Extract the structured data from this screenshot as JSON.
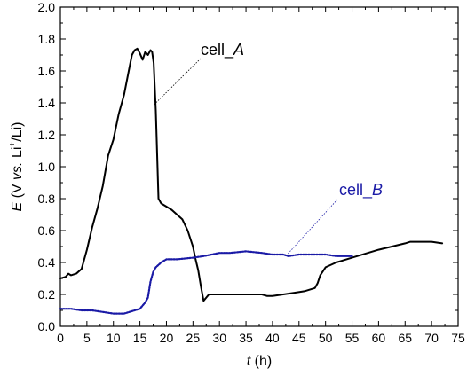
{
  "chart_data": {
    "type": "line",
    "x_axis": {
      "label_main": "t",
      "label_unit": " (h)",
      "range": [
        0,
        75
      ],
      "ticks": [
        0,
        5,
        10,
        15,
        20,
        25,
        30,
        35,
        40,
        45,
        50,
        55,
        60,
        65,
        70,
        75
      ],
      "tick_labels": [
        "0",
        "5",
        "10",
        "15",
        "20",
        "25",
        "30",
        "35",
        "40",
        "45",
        "50",
        "55",
        "60",
        "65",
        "70",
        "75"
      ]
    },
    "y_axis": {
      "label_main": "E",
      "label_v": " (V ",
      "label_vs": "vs.",
      "label_li": " Li",
      "label_sup": "+",
      "label_end": "/Li)",
      "range": [
        0,
        2.0
      ],
      "ticks": [
        0,
        0.2,
        0.4,
        0.6,
        0.8,
        1.0,
        1.2,
        1.4,
        1.6,
        1.8,
        2.0
      ],
      "tick_labels": [
        "0.0",
        "0.2",
        "0.4",
        "0.6",
        "0.8",
        "1.0",
        "1.2",
        "1.4",
        "1.6",
        "1.8",
        "2.0"
      ]
    },
    "grid": false,
    "series": [
      {
        "name": "cell_A",
        "color": "#000000",
        "style": "solid",
        "x": [
          0,
          1,
          1.5,
          2,
          3,
          4,
          5,
          6,
          7,
          8,
          9,
          10,
          11,
          12,
          13,
          13.5,
          14,
          14.5,
          15,
          15.5,
          16,
          16.5,
          17,
          17.3,
          17.6,
          18,
          18.5,
          19,
          20,
          21,
          22,
          23,
          24,
          25,
          25.5,
          26,
          26.5,
          27,
          27.5,
          28,
          30,
          35,
          38,
          39,
          40,
          42,
          44,
          46,
          48,
          48.5,
          49,
          50,
          52,
          55,
          60,
          65,
          66,
          68,
          70,
          72
        ],
        "y": [
          0.3,
          0.31,
          0.33,
          0.32,
          0.33,
          0.36,
          0.48,
          0.62,
          0.74,
          0.88,
          1.07,
          1.17,
          1.33,
          1.45,
          1.62,
          1.7,
          1.73,
          1.74,
          1.71,
          1.67,
          1.72,
          1.7,
          1.73,
          1.72,
          1.65,
          1.35,
          0.8,
          0.77,
          0.75,
          0.73,
          0.7,
          0.67,
          0.6,
          0.5,
          0.42,
          0.35,
          0.25,
          0.16,
          0.18,
          0.2,
          0.2,
          0.2,
          0.2,
          0.19,
          0.19,
          0.2,
          0.21,
          0.22,
          0.24,
          0.27,
          0.32,
          0.37,
          0.4,
          0.43,
          0.48,
          0.52,
          0.53,
          0.53,
          0.53,
          0.52
        ]
      },
      {
        "name": "cell_B",
        "color": "#1a1aa6",
        "style": "dotted",
        "x": [
          0,
          2,
          4,
          6,
          8,
          10,
          12,
          14,
          15,
          16,
          16.5,
          17,
          17.5,
          18,
          19,
          20,
          22,
          25,
          27,
          30,
          32,
          35,
          38,
          40,
          42,
          43,
          45,
          48,
          50,
          52,
          55
        ],
        "y": [
          0.11,
          0.11,
          0.1,
          0.1,
          0.09,
          0.08,
          0.08,
          0.1,
          0.11,
          0.15,
          0.18,
          0.28,
          0.34,
          0.37,
          0.4,
          0.42,
          0.42,
          0.43,
          0.44,
          0.46,
          0.46,
          0.47,
          0.46,
          0.45,
          0.45,
          0.44,
          0.45,
          0.45,
          0.45,
          0.44,
          0.44
        ]
      }
    ],
    "annotations": [
      {
        "text_main": "cell_",
        "text_italic": "A",
        "series": "cell_A",
        "color": "#000000"
      },
      {
        "text_main": "cell_",
        "text_italic": "B",
        "series": "cell_B",
        "color": "#1a1aa6"
      }
    ]
  }
}
